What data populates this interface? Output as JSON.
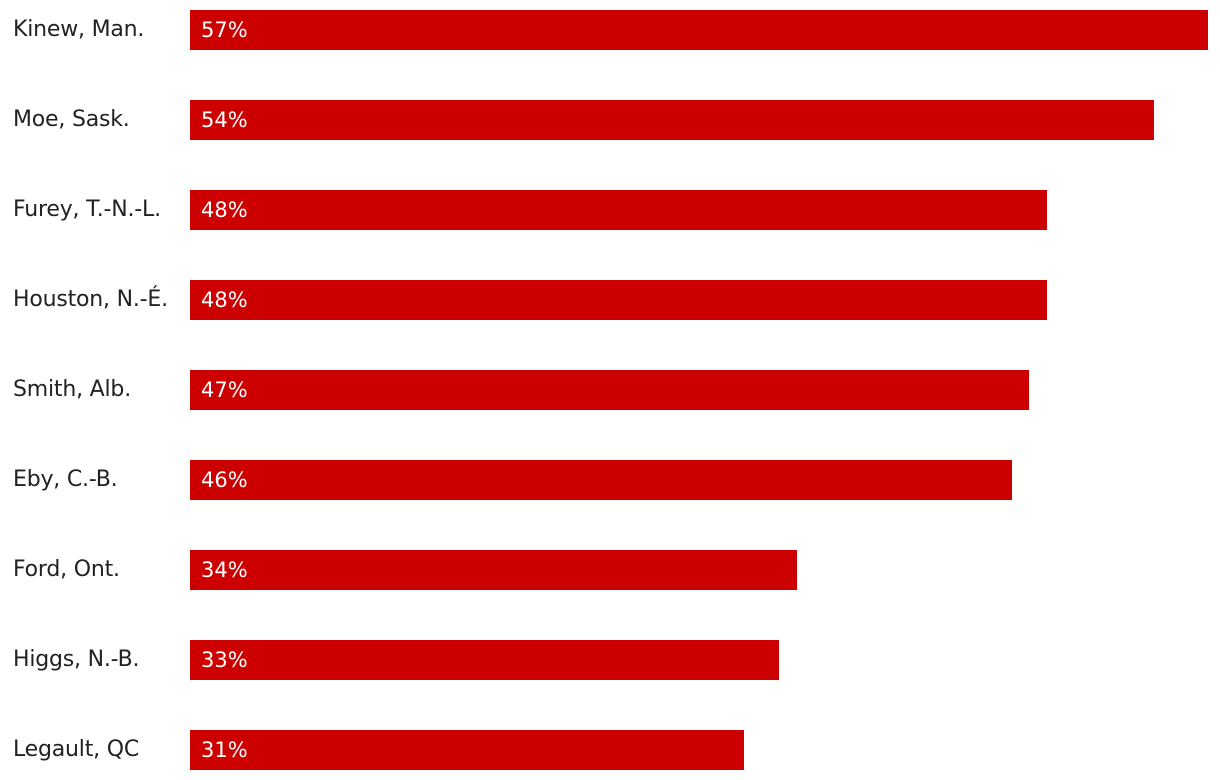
{
  "chart_data": {
    "type": "bar",
    "orientation": "horizontal",
    "categories": [
      "Kinew, Man.",
      "Moe, Sask.",
      "Furey, T.-N.-L.",
      "Houston, N.-É.",
      "Smith, Alb.",
      "Eby, C.-B.",
      "Ford, Ont.",
      "Higgs, N.-B.",
      "Legault, QC"
    ],
    "values": [
      57,
      54,
      48,
      48,
      47,
      46,
      34,
      33,
      31
    ],
    "value_labels": [
      "57%",
      "54%",
      "48%",
      "48%",
      "47%",
      "46%",
      "34%",
      "33%",
      "31%"
    ],
    "xlim": [
      0,
      57
    ],
    "bar_color": "#cc0000",
    "grid": false,
    "legend": "none"
  }
}
